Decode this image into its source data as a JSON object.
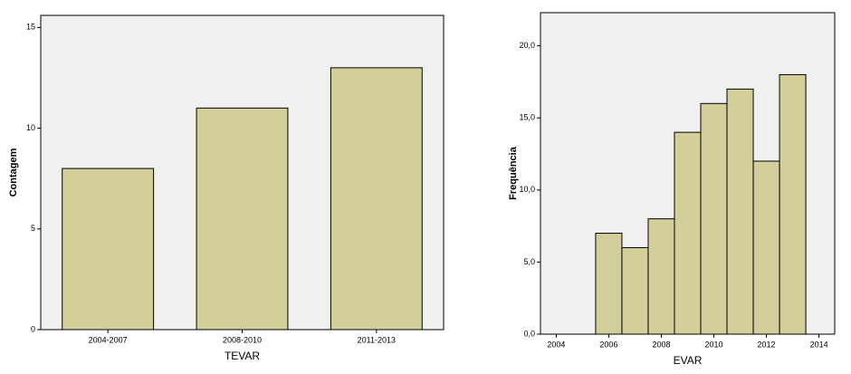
{
  "chart_data": [
    {
      "type": "bar",
      "x_label": "TEVAR",
      "y_label": "Contagem",
      "categories": [
        "2004-2007",
        "2008-2010",
        "2011-2013"
      ],
      "values": [
        8,
        11,
        13
      ],
      "color": "#d3cf9b",
      "ylim": [
        0,
        15.6
      ],
      "yticks": [
        0,
        5,
        10,
        15
      ]
    },
    {
      "type": "histogram",
      "x_label": "EVAR",
      "y_label": "Frequência",
      "bins": [
        2005.5,
        2006.5,
        2007.5,
        2008.5,
        2009.5,
        2010.5,
        2011.5,
        2012.5,
        2013.5
      ],
      "values": [
        7,
        6,
        8,
        14,
        16,
        17,
        12,
        18
      ],
      "color": "#d3cf9b",
      "xlim": [
        2003.4,
        2014.6
      ],
      "xticks": [
        2004,
        2006,
        2008,
        2010,
        2012,
        2014
      ],
      "ylim": [
        0,
        22.3
      ],
      "yticks": [
        {
          "value": 0,
          "label": "0,0"
        },
        {
          "value": 5,
          "label": "5,0"
        },
        {
          "value": 10,
          "label": "10,0"
        },
        {
          "value": 15,
          "label": "15,0"
        },
        {
          "value": 20,
          "label": "20,0"
        }
      ]
    }
  ]
}
